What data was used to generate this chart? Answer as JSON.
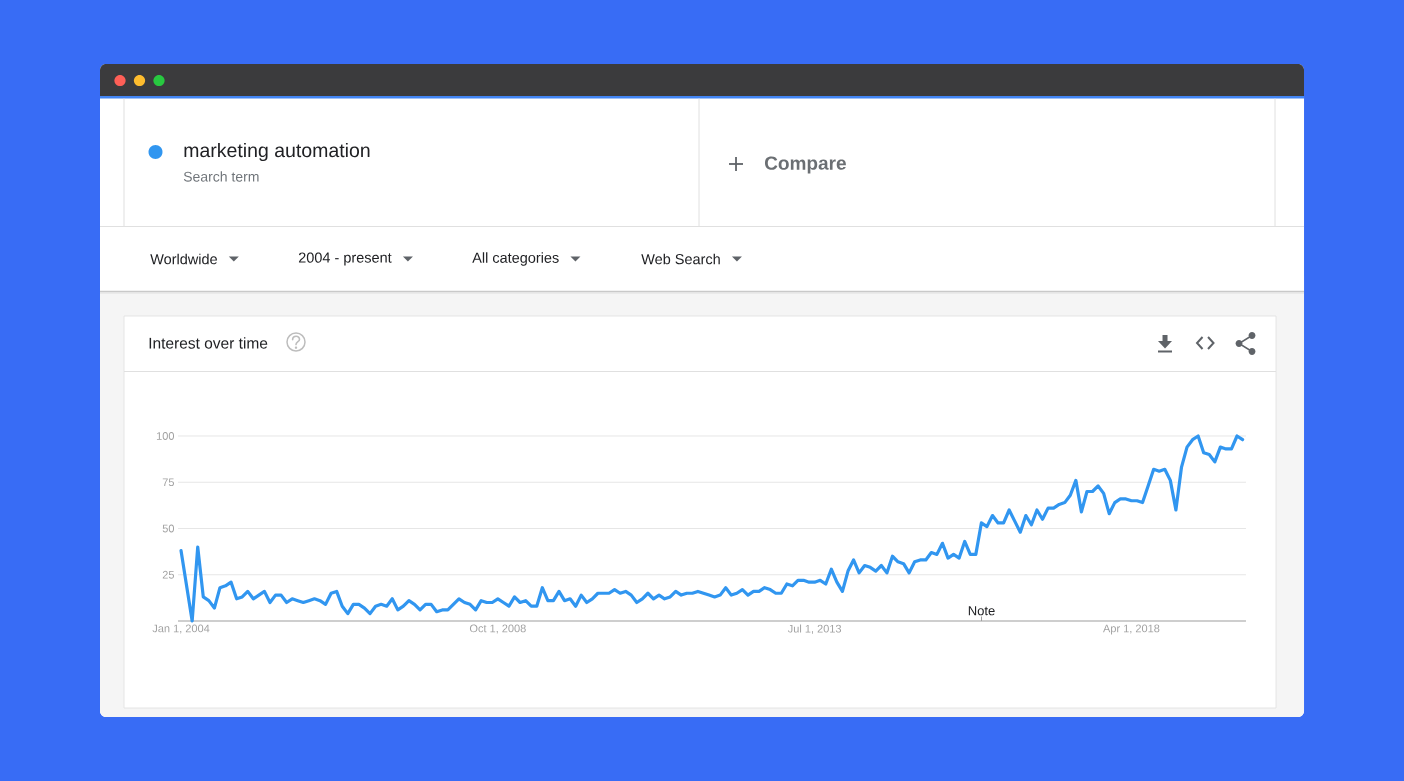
{
  "chart_data": {
    "type": "line",
    "title": "Interest over time",
    "legend": "top left",
    "x": [
      "2004-01",
      "2004-03",
      "2004-04",
      "2004-05",
      "2004-06",
      "2004-07",
      "2004-08",
      "2004-09",
      "2004-10",
      "2004-11",
      "2004-12",
      "2005-01",
      "2005-02",
      "2005-03",
      "2005-04",
      "2005-05",
      "2005-06",
      "2005-07",
      "2005-08",
      "2005-09",
      "2005-10",
      "2005-11",
      "2005-12",
      "2006-01",
      "2006-02",
      "2006-03",
      "2006-04",
      "2006-05",
      "2006-06",
      "2006-07",
      "2006-08",
      "2006-09",
      "2006-10",
      "2006-11",
      "2006-12",
      "2007-01",
      "2007-02",
      "2007-03",
      "2007-04",
      "2007-05",
      "2007-06",
      "2007-07",
      "2007-08",
      "2007-09",
      "2007-10",
      "2007-11",
      "2007-12",
      "2008-01",
      "2008-02",
      "2008-03",
      "2008-04",
      "2008-05",
      "2008-06",
      "2008-07",
      "2008-08",
      "2008-09",
      "2008-10",
      "2008-11",
      "2008-12",
      "2009-01",
      "2009-02",
      "2009-03",
      "2009-04",
      "2009-05",
      "2009-06",
      "2009-07",
      "2009-08",
      "2009-09",
      "2009-10",
      "2009-11",
      "2009-12",
      "2010-01",
      "2010-02",
      "2010-03",
      "2010-04",
      "2010-05",
      "2010-06",
      "2010-07",
      "2010-08",
      "2010-09",
      "2010-10",
      "2010-11",
      "2010-12",
      "2011-01",
      "2011-02",
      "2011-03",
      "2011-04",
      "2011-05",
      "2011-06",
      "2011-07",
      "2011-08",
      "2011-09",
      "2011-10",
      "2011-11",
      "2011-12",
      "2012-01",
      "2012-02",
      "2012-03",
      "2012-04",
      "2012-05",
      "2012-06",
      "2012-07",
      "2012-08",
      "2012-09",
      "2012-10",
      "2012-11",
      "2012-12",
      "2013-01",
      "2013-02",
      "2013-03",
      "2013-04",
      "2013-05",
      "2013-06",
      "2013-07",
      "2013-08",
      "2013-09",
      "2013-10",
      "2013-11",
      "2013-12",
      "2014-01",
      "2014-02",
      "2014-03",
      "2014-04",
      "2014-05",
      "2014-06",
      "2014-07",
      "2014-08",
      "2014-09",
      "2014-10",
      "2014-11",
      "2014-12",
      "2015-01",
      "2015-02",
      "2015-03",
      "2015-04",
      "2015-05",
      "2015-06",
      "2015-07",
      "2015-08",
      "2015-09",
      "2015-10",
      "2015-11",
      "2015-12",
      "2016-01",
      "2016-02",
      "2016-03",
      "2016-04",
      "2016-05",
      "2016-06",
      "2016-07",
      "2016-08",
      "2016-09",
      "2016-10",
      "2016-11",
      "2016-12",
      "2017-01",
      "2017-02",
      "2017-03",
      "2017-04",
      "2017-05",
      "2017-06",
      "2017-07",
      "2017-08",
      "2017-09",
      "2017-10",
      "2017-11",
      "2017-12",
      "2018-01",
      "2018-02",
      "2018-03",
      "2018-04",
      "2018-05",
      "2018-06",
      "2018-07",
      "2018-08",
      "2018-09",
      "2018-10",
      "2018-11",
      "2018-12",
      "2019-01",
      "2019-02",
      "2019-03",
      "2019-04",
      "2019-05",
      "2019-06",
      "2019-07",
      "2019-08",
      "2019-09",
      "2019-10",
      "2019-11",
      "2019-12"
    ],
    "series": [
      {
        "name": "marketing automation",
        "color": "#3196f0",
        "values": [
          38,
          0,
          40,
          13,
          11,
          7,
          18,
          19,
          21,
          12,
          13,
          16,
          12,
          14,
          16,
          10,
          14,
          14,
          10,
          12,
          11,
          10,
          11,
          12,
          11,
          9,
          15,
          16,
          8,
          4,
          9,
          9,
          7,
          4,
          8,
          9,
          8,
          12,
          6,
          8,
          11,
          9,
          6,
          9,
          9,
          5,
          6,
          6,
          9,
          12,
          10,
          9,
          6,
          11,
          10,
          10,
          12,
          10,
          8,
          13,
          10,
          11,
          8,
          8,
          18,
          11,
          11,
          16,
          11,
          12,
          8,
          14,
          10,
          12,
          15,
          15,
          15,
          17,
          15,
          16,
          14,
          10,
          12,
          15,
          12,
          14,
          12,
          13,
          16,
          14,
          15,
          15,
          16,
          15,
          14,
          13,
          14,
          18,
          14,
          15,
          17,
          14,
          16,
          16,
          18,
          17,
          15,
          15,
          20,
          19,
          22,
          22,
          21,
          21,
          22,
          20,
          28,
          21,
          16,
          27,
          33,
          26,
          30,
          29,
          27,
          30,
          26,
          35,
          32,
          31,
          26,
          32,
          33,
          33,
          37,
          36,
          42,
          34,
          36,
          34,
          43,
          36,
          36,
          53,
          51,
          57,
          53,
          53,
          60,
          54,
          48,
          57,
          52,
          60,
          55,
          61,
          61,
          63,
          64,
          68,
          76,
          59,
          70,
          70,
          73,
          69,
          58,
          64,
          66,
          66,
          65,
          65,
          64,
          73,
          82,
          81,
          82,
          76,
          60,
          83,
          94,
          98,
          100,
          91,
          90,
          86,
          94,
          93,
          93,
          100,
          98
        ]
      }
    ],
    "xlim": [
      "2003-12-15",
      "2019-12-20"
    ],
    "xticks": [
      {
        "value": "2004-01-01",
        "label": "Jan 1, 2004"
      },
      {
        "value": "2008-10-01",
        "label": "Oct 1, 2008"
      },
      {
        "value": "2013-07-01",
        "label": "Jul 1, 2013"
      },
      {
        "value": "2018-04-01",
        "label": "Apr 1, 2018"
      }
    ],
    "ylim": [
      0,
      100
    ],
    "yticks": [
      25,
      50,
      75,
      100
    ],
    "grid": "y",
    "annotations": [
      "Search term",
      "Compare",
      "Worldwide",
      "2004 - present",
      "All categories",
      "Web Search",
      "Note"
    ]
  }
}
